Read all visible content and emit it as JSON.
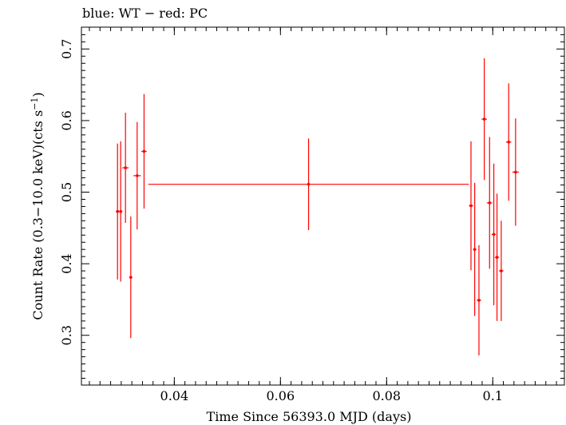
{
  "chart_data": {
    "type": "scatter",
    "title": "blue: WT − red: PC",
    "xlabel": "Time Since 56393.0 MJD (days)",
    "ylabel_main": "Count Rate (0.3−10.0 keV)(cts s",
    "ylabel_sup": "−1",
    "ylabel_end": ")",
    "xlim": [
      0.0225,
      0.1135
    ],
    "ylim": [
      0.2305,
      0.7305
    ],
    "x_ticks": [
      {
        "value": 0.04,
        "label": "0.04"
      },
      {
        "value": 0.06,
        "label": "0.06"
      },
      {
        "value": 0.08,
        "label": "0.08"
      },
      {
        "value": 0.1,
        "label": "0.1"
      }
    ],
    "y_ticks": [
      {
        "value": 0.3,
        "label": "0.3"
      },
      {
        "value": 0.4,
        "label": "0.4"
      },
      {
        "value": 0.5,
        "label": "0.5"
      },
      {
        "value": 0.6,
        "label": "0.6"
      },
      {
        "value": 0.7,
        "label": "0.7"
      }
    ],
    "grid": false,
    "series": [
      {
        "color": "#ff0000",
        "points": [
          {
            "x": 0.0293,
            "xerr": 0.0003,
            "y": 0.473,
            "yerr": 0.095
          },
          {
            "x": 0.0299,
            "xerr": 0.0003,
            "y": 0.473,
            "yerr": 0.098
          },
          {
            "x": 0.0308,
            "xerr": 0.0006,
            "y": 0.534,
            "yerr": 0.077
          },
          {
            "x": 0.0318,
            "xerr": 0.0003,
            "y": 0.381,
            "yerr": 0.085
          },
          {
            "x": 0.033,
            "xerr": 0.0007,
            "y": 0.523,
            "yerr": 0.075
          },
          {
            "x": 0.0343,
            "xerr": 0.0005,
            "y": 0.557,
            "yerr": 0.08
          },
          {
            "x": 0.0653,
            "xerr": 0.0302,
            "y": 0.511,
            "yerr": 0.064
          },
          {
            "x": 0.0959,
            "xerr": 0.0004,
            "y": 0.481,
            "yerr": 0.09
          },
          {
            "x": 0.0966,
            "xerr": 0.0003,
            "y": 0.42,
            "yerr": 0.093
          },
          {
            "x": 0.0974,
            "xerr": 0.0004,
            "y": 0.349,
            "yerr": 0.077
          },
          {
            "x": 0.0984,
            "xerr": 0.0005,
            "y": 0.602,
            "yerr": 0.085
          },
          {
            "x": 0.0994,
            "xerr": 0.0005,
            "y": 0.485,
            "yerr": 0.092
          },
          {
            "x": 0.1002,
            "xerr": 0.0004,
            "y": 0.441,
            "yerr": 0.099
          },
          {
            "x": 0.1008,
            "xerr": 0.0004,
            "y": 0.409,
            "yerr": 0.089
          },
          {
            "x": 0.1016,
            "xerr": 0.0004,
            "y": 0.39,
            "yerr": 0.07
          },
          {
            "x": 0.103,
            "xerr": 0.0005,
            "y": 0.57,
            "yerr": 0.082
          },
          {
            "x": 0.1043,
            "xerr": 0.0006,
            "y": 0.528,
            "yerr": 0.075
          }
        ]
      }
    ]
  }
}
